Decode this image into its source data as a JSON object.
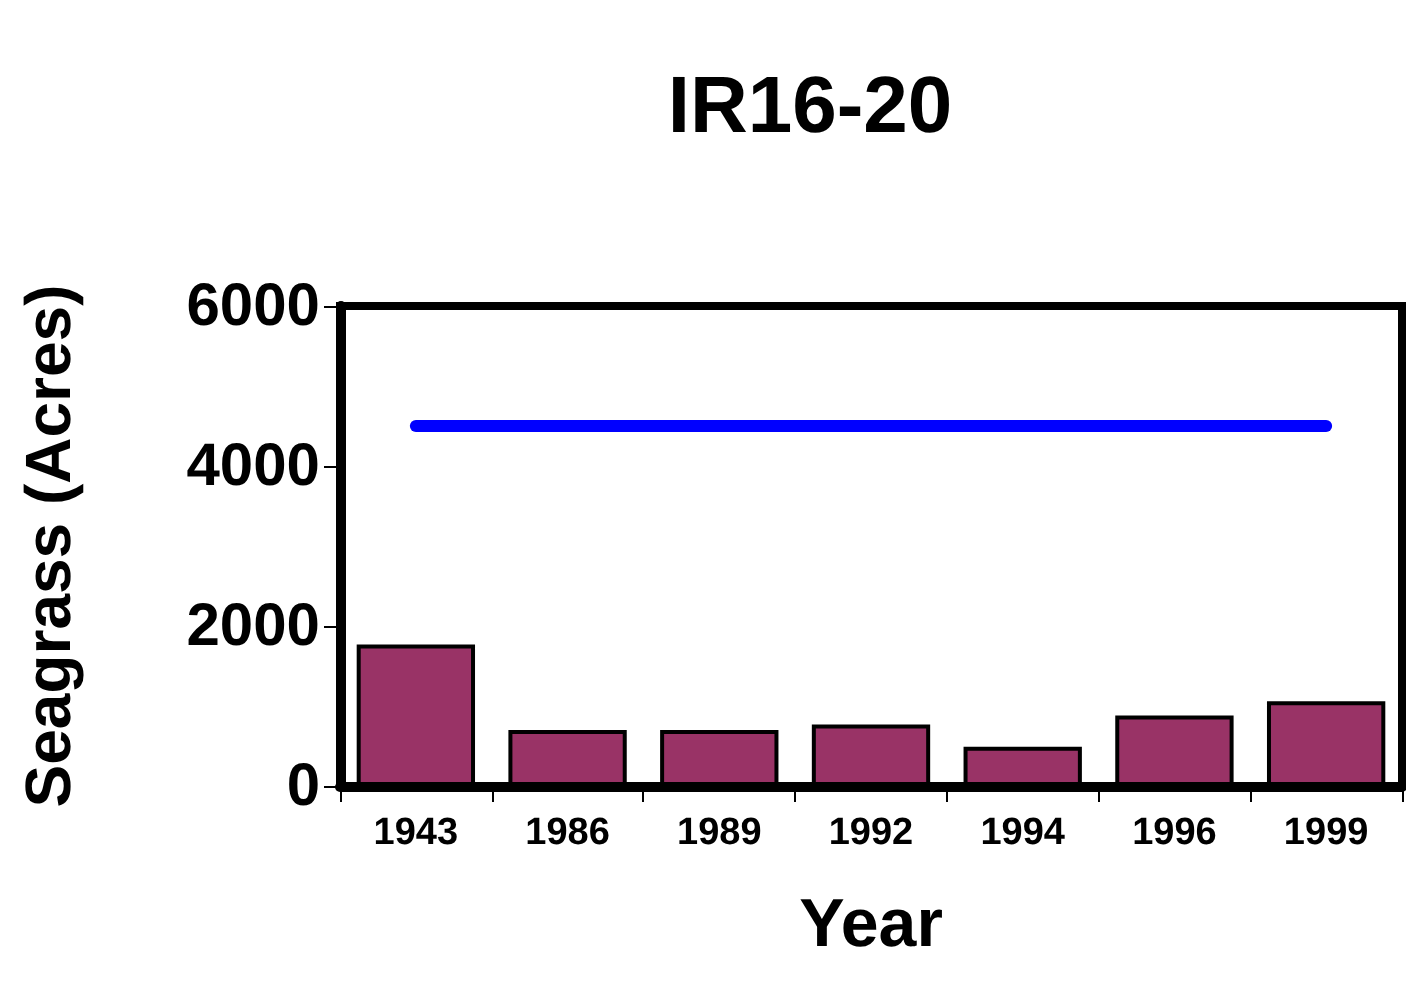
{
  "chart_data": {
    "type": "bar",
    "title": "IR16-20",
    "xlabel": "Year",
    "ylabel": "Seagrass (Acres)",
    "categories": [
      "1943",
      "1986",
      "1989",
      "1992",
      "1994",
      "1996",
      "1999"
    ],
    "values": [
      1770,
      700,
      700,
      770,
      490,
      880,
      1060
    ],
    "color": "#993366",
    "ylim": [
      0,
      6000
    ],
    "yticks": [
      0,
      2000,
      4000,
      6000
    ],
    "grid": false,
    "ref_lines": [
      {
        "axis": "y",
        "value": 4500,
        "color": "#0000ff"
      }
    ]
  }
}
